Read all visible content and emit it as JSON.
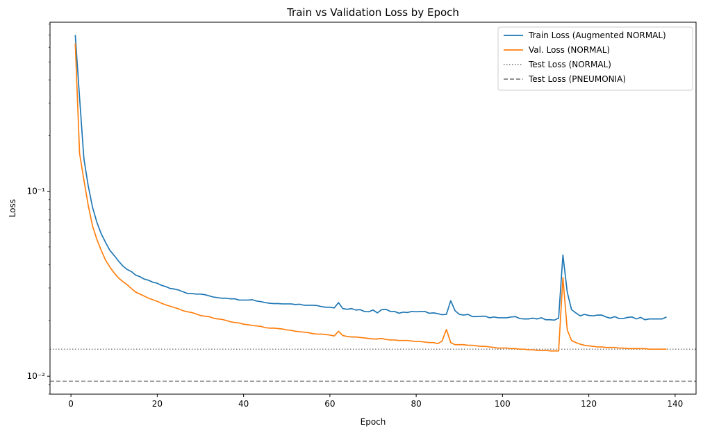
{
  "chart_data": {
    "type": "line",
    "title": "Train vs Validation Loss by Epoch",
    "xlabel": "Epoch",
    "ylabel": "Loss",
    "yscale": "log",
    "xlim": [
      -4.85,
      144.85
    ],
    "ylim": [
      0.008,
      0.82
    ],
    "grid": false,
    "legend_position": "top-right",
    "x_ticks": [
      0,
      20,
      40,
      60,
      80,
      100,
      120,
      140
    ],
    "x_tick_labels": [
      "0",
      "20",
      "40",
      "60",
      "80",
      "100",
      "120",
      "140"
    ],
    "y_ticks": [
      0.01,
      0.1
    ],
    "y_tick_labels": [
      "10⁻²",
      "10⁻¹"
    ],
    "x_start": 1,
    "series": [
      {
        "name": "Train Loss (Augmented NORMAL)",
        "color": "#1f77b4",
        "style": "solid",
        "values": [
          0.7,
          0.32,
          0.15,
          0.107,
          0.082,
          0.068,
          0.059,
          0.053,
          0.048,
          0.045,
          0.042,
          0.0395,
          0.0378,
          0.0368,
          0.0352,
          0.0345,
          0.0335,
          0.033,
          0.0322,
          0.0318,
          0.031,
          0.0305,
          0.0298,
          0.0296,
          0.0292,
          0.0286,
          0.028,
          0.028,
          0.0278,
          0.0278,
          0.0276,
          0.0272,
          0.0268,
          0.0266,
          0.0264,
          0.0264,
          0.0262,
          0.0262,
          0.0258,
          0.0258,
          0.0258,
          0.0259,
          0.0255,
          0.0253,
          0.025,
          0.0248,
          0.0247,
          0.0247,
          0.0246,
          0.0246,
          0.0246,
          0.0244,
          0.0245,
          0.0242,
          0.0242,
          0.0242,
          0.0241,
          0.0238,
          0.0236,
          0.0236,
          0.0234,
          0.025,
          0.0232,
          0.023,
          0.0232,
          0.0228,
          0.0229,
          0.0224,
          0.0223,
          0.0228,
          0.022,
          0.0229,
          0.023,
          0.0224,
          0.0224,
          0.0219,
          0.0222,
          0.0221,
          0.0224,
          0.0223,
          0.0224,
          0.0224,
          0.0219,
          0.022,
          0.0218,
          0.0215,
          0.0216,
          0.0256,
          0.0226,
          0.0216,
          0.0214,
          0.0216,
          0.021,
          0.021,
          0.0211,
          0.0211,
          0.0207,
          0.0209,
          0.0207,
          0.0207,
          0.0207,
          0.0209,
          0.021,
          0.0205,
          0.0204,
          0.0204,
          0.0206,
          0.0204,
          0.0207,
          0.0202,
          0.0202,
          0.0201,
          0.0206,
          0.0452,
          0.0285,
          0.0229,
          0.022,
          0.0212,
          0.0216,
          0.0213,
          0.0212,
          0.0214,
          0.0214,
          0.0209,
          0.0206,
          0.021,
          0.0205,
          0.0205,
          0.0208,
          0.0209,
          0.0204,
          0.0208,
          0.0202,
          0.0204,
          0.0204,
          0.0204,
          0.0204,
          0.0209
        ]
      },
      {
        "name": "Val. Loss (NORMAL)",
        "color": "#ff7f0e",
        "style": "solid",
        "values": [
          0.63,
          0.16,
          0.115,
          0.084,
          0.065,
          0.055,
          0.048,
          0.0425,
          0.039,
          0.0362,
          0.034,
          0.0325,
          0.0313,
          0.0298,
          0.0285,
          0.0278,
          0.0271,
          0.0264,
          0.0259,
          0.0254,
          0.0248,
          0.0243,
          0.0239,
          0.0235,
          0.0231,
          0.0226,
          0.0223,
          0.0221,
          0.0217,
          0.0213,
          0.0211,
          0.021,
          0.0206,
          0.0204,
          0.0203,
          0.02,
          0.0197,
          0.0195,
          0.0194,
          0.0191,
          0.019,
          0.0188,
          0.0187,
          0.0186,
          0.0183,
          0.0182,
          0.0182,
          0.0181,
          0.018,
          0.0178,
          0.0177,
          0.0175,
          0.0174,
          0.0173,
          0.0172,
          0.017,
          0.0169,
          0.0169,
          0.0168,
          0.0167,
          0.0165,
          0.0175,
          0.0166,
          0.0164,
          0.0163,
          0.0163,
          0.0162,
          0.0161,
          0.016,
          0.0159,
          0.0159,
          0.016,
          0.0158,
          0.0157,
          0.0157,
          0.0156,
          0.0156,
          0.0156,
          0.0155,
          0.0154,
          0.0154,
          0.0153,
          0.0152,
          0.0152,
          0.015,
          0.0155,
          0.0179,
          0.0152,
          0.0148,
          0.0148,
          0.0148,
          0.0147,
          0.0147,
          0.0146,
          0.0145,
          0.0145,
          0.0144,
          0.0143,
          0.0142,
          0.0142,
          0.0142,
          0.0141,
          0.0141,
          0.014,
          0.014,
          0.0139,
          0.0139,
          0.0138,
          0.0138,
          0.0138,
          0.0137,
          0.0137,
          0.0137,
          0.0342,
          0.0178,
          0.0156,
          0.0152,
          0.0149,
          0.0147,
          0.0146,
          0.0145,
          0.0144,
          0.0144,
          0.0143,
          0.0143,
          0.0143,
          0.0142,
          0.0142,
          0.0141,
          0.0141,
          0.0141,
          0.0141,
          0.0141,
          0.014,
          0.014,
          0.014,
          0.014,
          0.014
        ]
      },
      {
        "name": "Test Loss (NORMAL)",
        "color": "#808080",
        "style": "dotted",
        "hline": 0.014
      },
      {
        "name": "Test Loss (PNEUMONIA)",
        "color": "#808080",
        "style": "dashed",
        "hline": 0.0094
      }
    ]
  }
}
